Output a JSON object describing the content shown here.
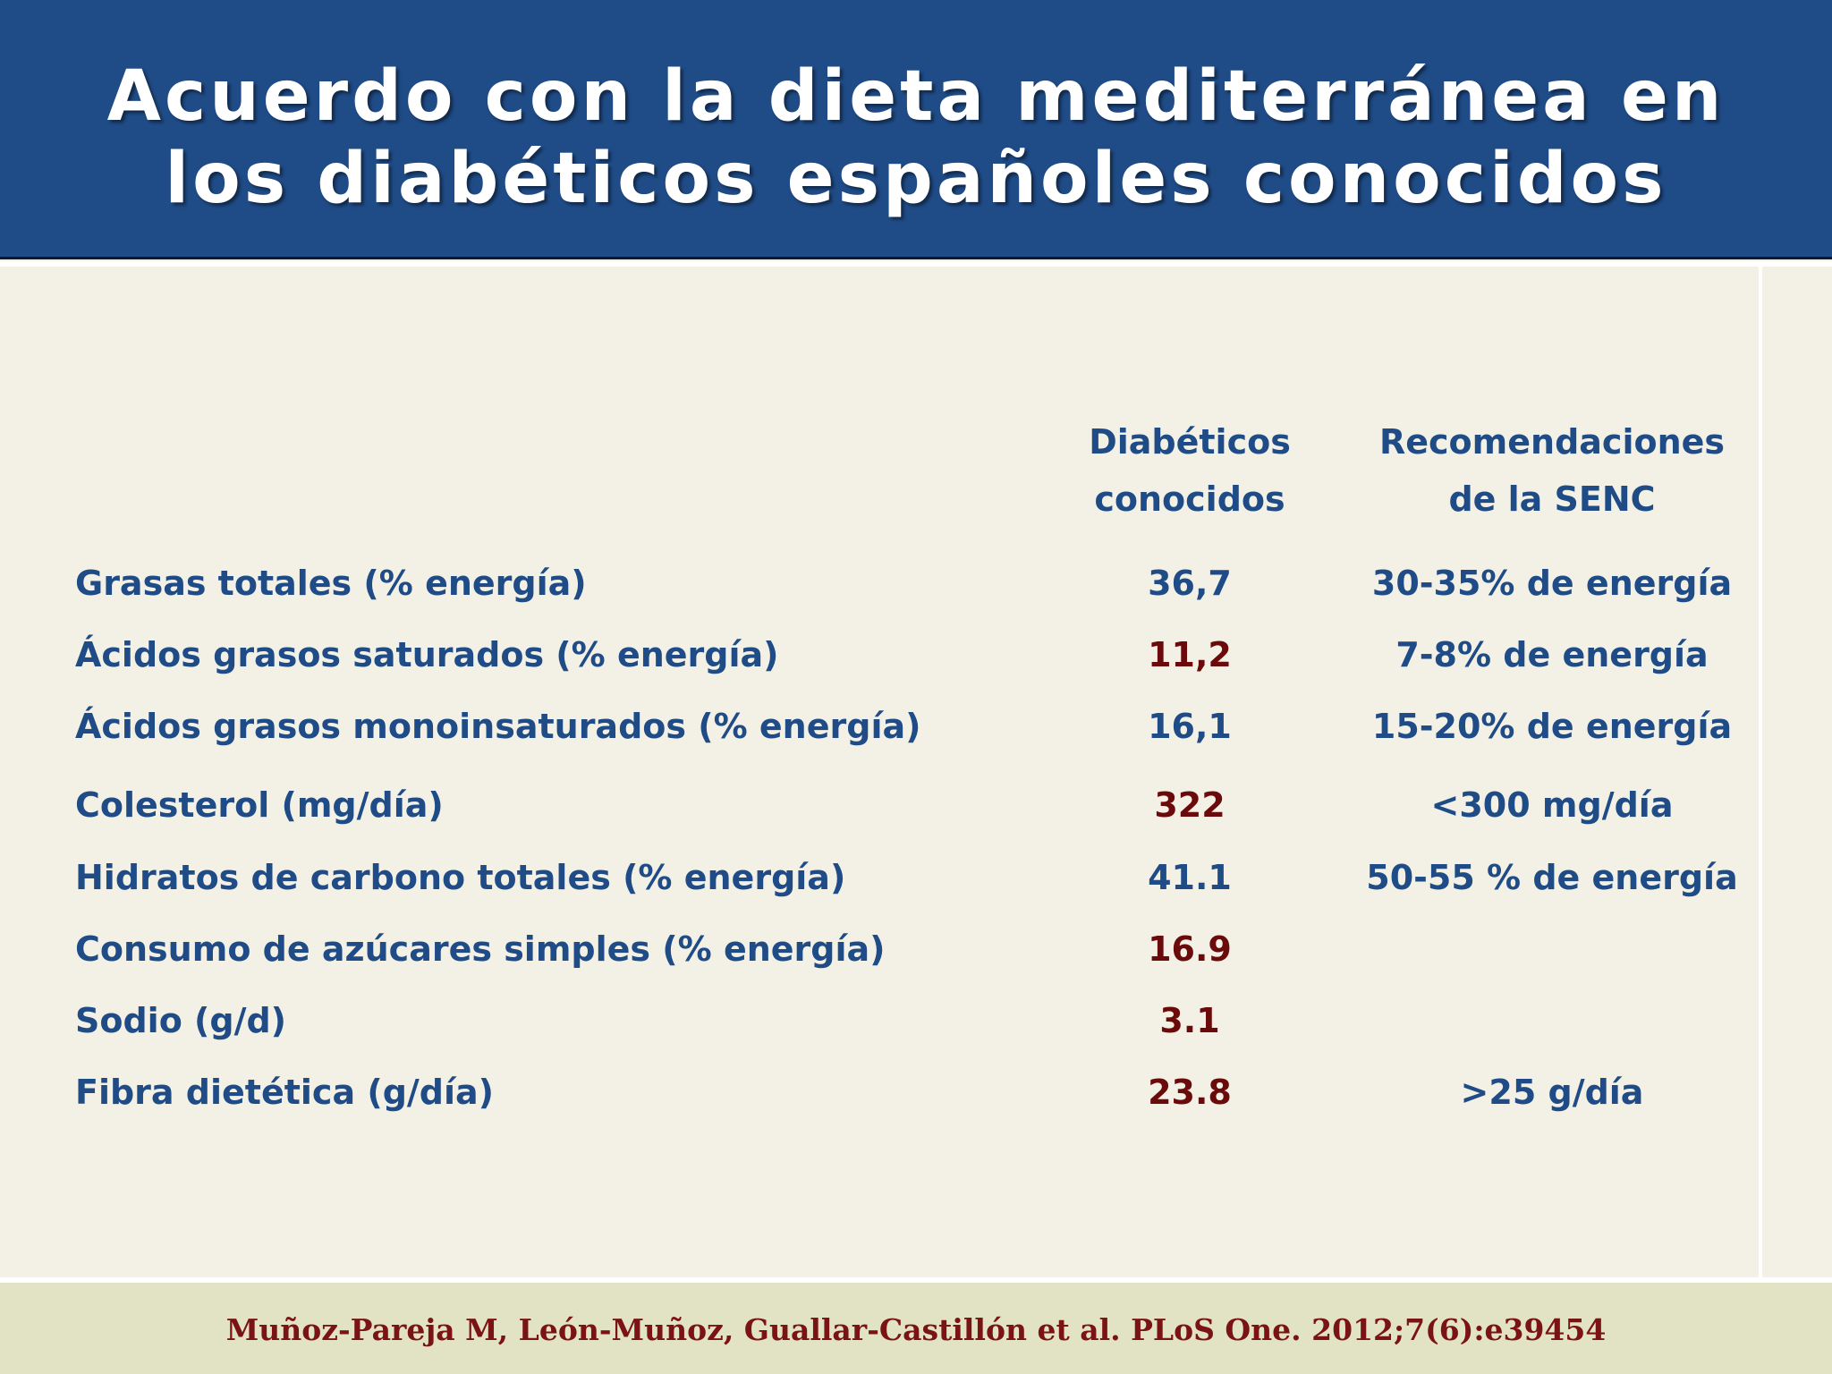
{
  "header": {
    "title_line1": "Acuerdo con la dieta mediterránea en",
    "title_line2": "los diabéticos españoles conocidos",
    "background_color": "#1f4b86"
  },
  "table": {
    "columns": [
      {
        "line1": "Diabéticos",
        "line2": "conocidos"
      },
      {
        "line1": "Recomendaciones",
        "line2": "de la SENC"
      }
    ],
    "rows": [
      {
        "label": "Grasas totales (% energía)",
        "value": "36,7",
        "value_color": "blue",
        "recommendation": "30-35% de energía"
      },
      {
        "label": "Ácidos grasos saturados (% energía)",
        "value": "11,2",
        "value_color": "red",
        "recommendation": "7-8% de energía"
      },
      {
        "label": "Ácidos grasos monoinsaturados (% energía)",
        "value": "16,1",
        "value_color": "blue",
        "recommendation": "15-20% de energía"
      },
      {
        "label": "Colesterol (mg/día)",
        "value": "322",
        "value_color": "red",
        "recommendation": "<300 mg/día"
      },
      {
        "label": "Hidratos de carbono totales (% energía)",
        "value": "41.1",
        "value_color": "blue",
        "recommendation": "50-55 % de energía"
      },
      {
        "label": "Consumo de azúcares simples (% energía)",
        "value": "16.9",
        "value_color": "red",
        "recommendation": ""
      },
      {
        "label": "Sodio (g/d)",
        "value": "3.1",
        "value_color": "red",
        "recommendation": ""
      },
      {
        "label": "Fibra dietética (g/día)",
        "value": "23.8",
        "value_color": "red",
        "recommendation": ">25 g/día"
      }
    ]
  },
  "footer": {
    "citation": "Muñoz-Pareja M, León-Muñoz, Guallar-Castillón et al. PLoS One. 2012;7(6):e39454"
  },
  "colors": {
    "text_blue": "#1f4b86",
    "text_red": "#6b0a0a",
    "content_bg": "#f3f1e6",
    "footer_bg": "#e2e2c4",
    "citation_color": "#7a1414"
  }
}
